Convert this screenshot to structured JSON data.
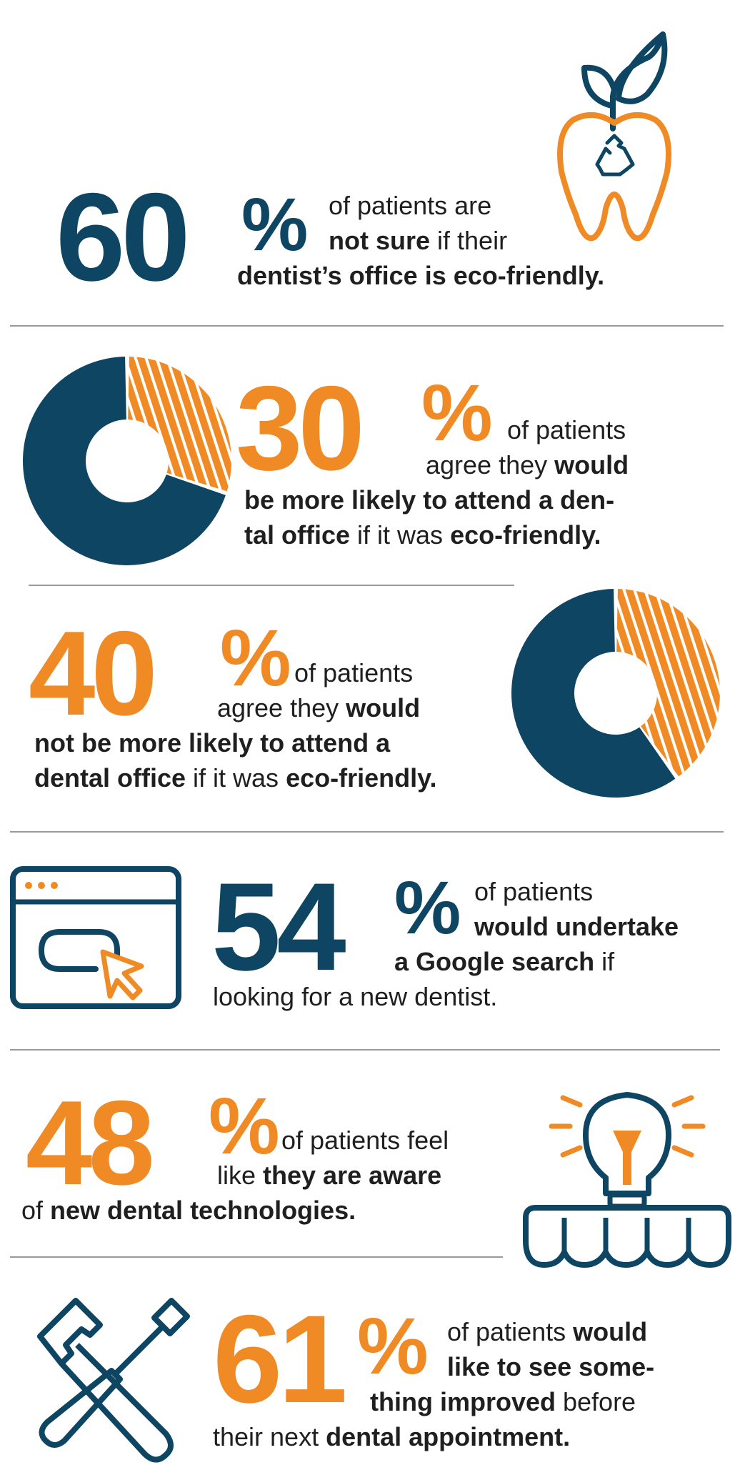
{
  "colors": {
    "navy": "#0d4563",
    "orange": "#f08a24",
    "divider": "#9a9a9a"
  },
  "stat1": {
    "number": "60",
    "percent": "%",
    "icon": "tooth-recycle-leaf-icon",
    "l1": "of patients are",
    "l2_bold": "not sure",
    "l2_rest": " if their",
    "l3_bold": "dentist’s office is eco-friendly."
  },
  "stat2": {
    "number": "30",
    "percent": "%",
    "icon": "donut-30-icon",
    "share": 0.3,
    "l1": "of patients",
    "l2_pre": "agree they ",
    "l2_bold": "would",
    "l3_bold": "be more likely to attend a den-",
    "l4_bold": "tal office",
    "l4_mid": " if it was ",
    "l4_bold2": "eco-friendly."
  },
  "stat3": {
    "number": "40",
    "percent": "%",
    "icon": "donut-40-icon",
    "share": 0.4,
    "l1": "of patients",
    "l2_pre": "agree they ",
    "l2_bold": "would",
    "l3_bold": "not be more likely to attend a",
    "l4_bold": "dental office",
    "l4_mid": " if it was ",
    "l4_bold2": "eco-friendly."
  },
  "stat4": {
    "number": "54",
    "percent": "%",
    "icon": "browser-click-icon",
    "l1": "of patients",
    "l2_bold": "would undertake",
    "l3_bold": "a Google search",
    "l3_rest": " if",
    "l4": "looking for a new dentist."
  },
  "stat5": {
    "number": "48",
    "percent": "%",
    "icon": "lightbulb-teeth-icon",
    "l1": "of patients feel",
    "l2_pre": "like ",
    "l2_bold": "they are aware",
    "l3_pre": "of ",
    "l3_bold": "new dental technologies."
  },
  "stat6": {
    "number": "61",
    "percent": "%",
    "icon": "hammer-screwdriver-icon",
    "l1_pre": "of patients ",
    "l1_bold": "would",
    "l2_bold": "like to see some-",
    "l3_bold": "thing improved",
    "l3_rest": " before",
    "l4_pre": "their next ",
    "l4_bold": "dental appointment."
  }
}
